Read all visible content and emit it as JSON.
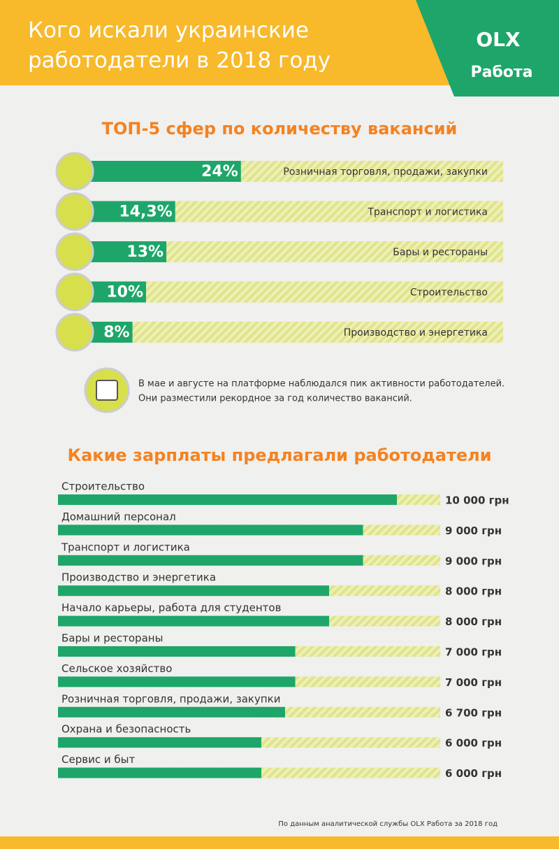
{
  "header": {
    "title_lines": [
      "Кого искали украинские",
      "работодатели в 2018 году"
    ],
    "logo": "OLX",
    "logo_caption": "Работа"
  },
  "note": [
    "В мае и августе на платформе наблюдался пик активности работодателей.",
    "Они разместили рекордное за год количество вакансий."
  ],
  "source": "По данным аналитической службы OLX Работа за 2018 год",
  "chart_data": [
    {
      "type": "bar",
      "title": "ТОП-5 сфер по количеству вакансий",
      "color": "#1ea66a",
      "categories": [
        "Розничная торговля, продажи, закупки",
        "Транспорт и логистика",
        "Бары и рестораны",
        "Строительство",
        "Производство и энергетика"
      ],
      "values": [
        24,
        14.3,
        13,
        10,
        8
      ],
      "value_labels": [
        "24%",
        "14,3%",
        "13%",
        "10%",
        "8%"
      ]
    },
    {
      "type": "bar",
      "title": "Какие зарплаты предлагали работодатели",
      "color": "#1ea66a",
      "categories": [
        "Строительство",
        "Домашний персонал",
        "Транспорт и логистика",
        "Производство и энергетика",
        "Начало карьеры, работа для студентов",
        "Бары и рестораны",
        "Сельское хозяйство",
        "Розничная торговля, продажи, закупки",
        "Охрана и безопасность",
        "Сервис и быт"
      ],
      "values": [
        10000,
        9000,
        9000,
        8000,
        8000,
        7000,
        7000,
        6700,
        6000,
        6000
      ],
      "value_labels": [
        "10 000 грн",
        "9 000 грн",
        "9 000 грн",
        "8 000 грн",
        "8 000 грн",
        "7 000 грн",
        "7 000 грн",
        "6 700 грн",
        "6 000 грн",
        "6 000 грн"
      ]
    }
  ]
}
